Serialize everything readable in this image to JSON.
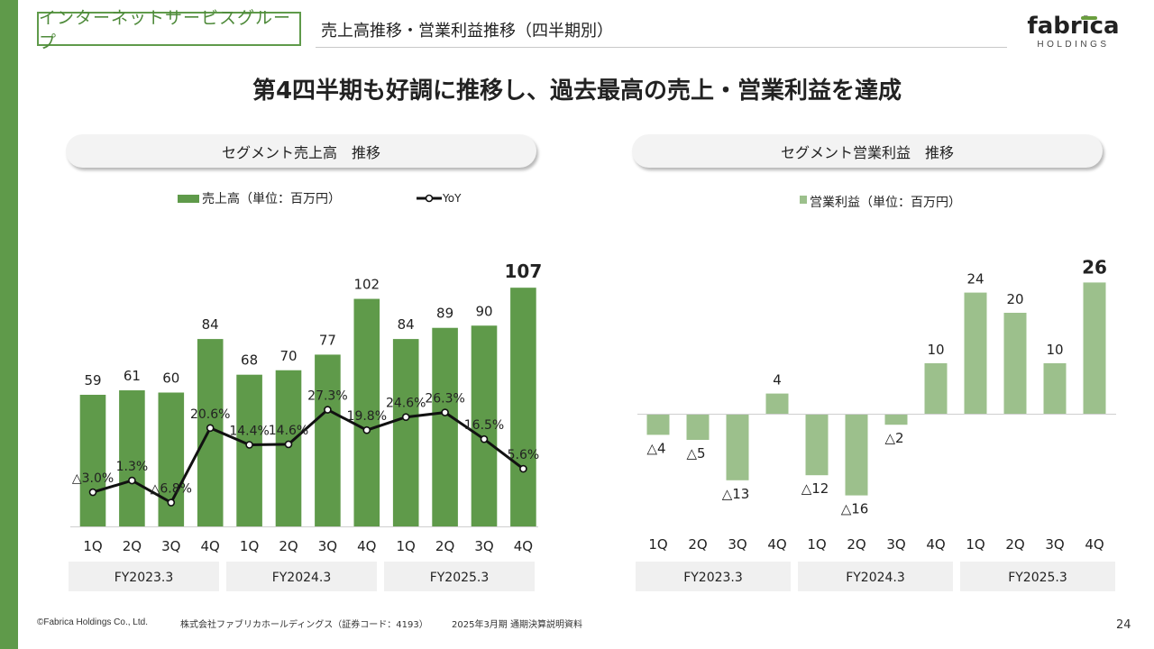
{
  "header": {
    "group_tag": "インターネットサービスグループ",
    "title": "売上高推移・営業利益推移（四半期別）",
    "logo_main": "fabrica",
    "logo_sub": "HOLDINGS"
  },
  "headline": "第4四半期も好調に推移し、過去最高の売上・営業利益を達成",
  "panels": {
    "left_title": "セグメント売上高　推移",
    "right_title": "セグメント営業利益　推移"
  },
  "colors": {
    "accent": "#5f9a4a",
    "sales_bar": "#5f9a4a",
    "profit_bar": "#9cc08c",
    "yoy_line": "#111111",
    "fy_box": "#f0f0f0"
  },
  "chart_data": [
    {
      "type": "bar",
      "categories": [
        "1Q",
        "2Q",
        "3Q",
        "4Q",
        "1Q",
        "2Q",
        "3Q",
        "4Q",
        "1Q",
        "2Q",
        "3Q",
        "4Q"
      ],
      "groups": [
        "FY2023.3",
        "FY2024.3",
        "FY2025.3"
      ],
      "series": [
        {
          "name": "売上高（単位：百万円）",
          "values": [
            59,
            61,
            60,
            84,
            68,
            70,
            77,
            102,
            84,
            89,
            90,
            107
          ],
          "labels": [
            "59",
            "61",
            "60",
            "84",
            "68",
            "70",
            "77",
            "102",
            "84",
            "89",
            "90",
            "107"
          ]
        },
        {
          "name": "YoY",
          "type": "line",
          "values": [
            -3.0,
            1.3,
            -6.8,
            20.6,
            14.4,
            14.6,
            27.3,
            19.8,
            24.6,
            26.3,
            16.5,
            5.6
          ],
          "labels": [
            "△3.0%",
            "1.3%",
            "△6.8%",
            "20.6%",
            "14.4%",
            "14.6%",
            "27.3%",
            "19.8%",
            "24.6%",
            "26.3%",
            "16.5%",
            "5.6%"
          ]
        }
      ],
      "legend": [
        "売上高（単位：百万円）",
        "YoY"
      ],
      "legend_placement": "top"
    },
    {
      "type": "bar",
      "categories": [
        "1Q",
        "2Q",
        "3Q",
        "4Q",
        "1Q",
        "2Q",
        "3Q",
        "4Q",
        "1Q",
        "2Q",
        "3Q",
        "4Q"
      ],
      "groups": [
        "FY2023.3",
        "FY2024.3",
        "FY2025.3"
      ],
      "series": [
        {
          "name": "営業利益（単位：百万円）",
          "values": [
            -4,
            -5,
            -13,
            4,
            -12,
            -16,
            -2,
            10,
            24,
            20,
            10,
            26
          ],
          "labels": [
            "△4",
            "△5",
            "△13",
            "4",
            "△12",
            "△16",
            "△2",
            "10",
            "24",
            "20",
            "10",
            "26"
          ]
        }
      ],
      "legend": [
        "営業利益（単位：百万円）"
      ],
      "legend_placement": "top"
    }
  ],
  "footer": {
    "copyright": "©Fabrica Holdings Co., Ltd.",
    "company": "株式会社ファブリカホールディングス（証券コード：4193）",
    "document": "2025年3月期 通期決算説明資料",
    "page": "24"
  }
}
